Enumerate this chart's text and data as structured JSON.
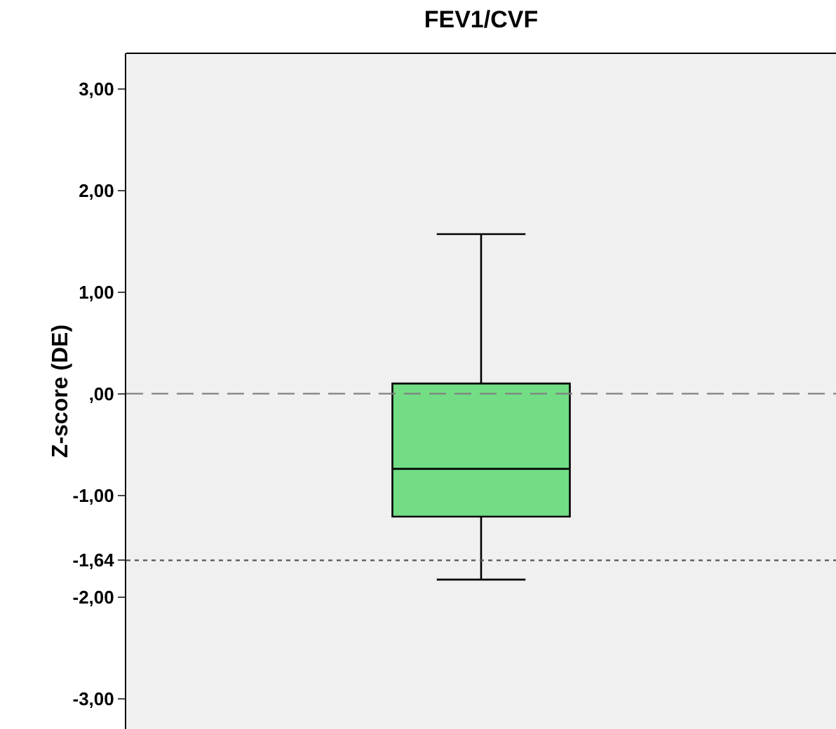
{
  "chart_data": {
    "type": "box",
    "title": "FEV1/CVF",
    "ylabel": "Z-score (DE)",
    "categories": [
      null
    ],
    "boxes": [
      {
        "low": -1.83,
        "q1": -1.21,
        "median": -0.74,
        "q3": 0.1,
        "high": 1.57
      }
    ],
    "color": "#72dd85",
    "ylim": [
      -3.3,
      3.35
    ],
    "yticks": [
      {
        "value": 3,
        "label": "3,00"
      },
      {
        "value": 2,
        "label": "2,00"
      },
      {
        "value": 1,
        "label": "1,00"
      },
      {
        "value": 0,
        "label": ",00"
      },
      {
        "value": -1,
        "label": "-1,00"
      },
      {
        "value": -1.64,
        "label": "-1,64"
      },
      {
        "value": -2,
        "label": "-2,00"
      },
      {
        "value": -3,
        "label": "-3,00"
      }
    ],
    "ref_lines": [
      {
        "axis": "y",
        "value": 0,
        "line_style": "dashed",
        "color": "#808080"
      },
      {
        "axis": "y",
        "value": -1.64,
        "line_style": "dotted",
        "color": "#555555"
      }
    ],
    "grid": false,
    "legend": false
  }
}
